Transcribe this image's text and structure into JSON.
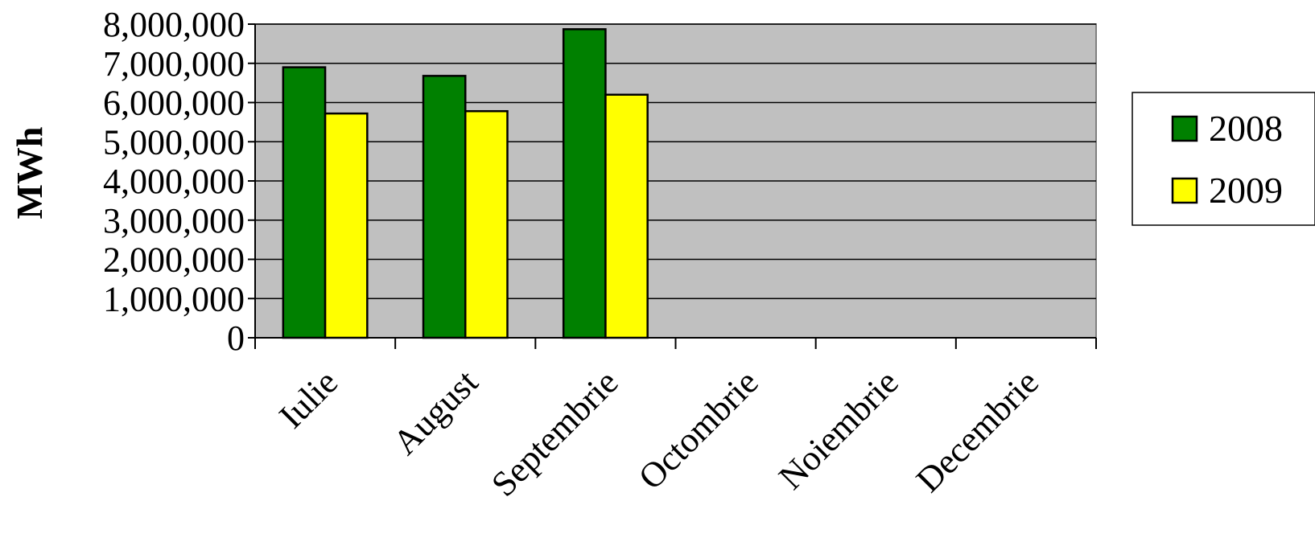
{
  "chart_data": {
    "type": "bar",
    "categories": [
      "Iulie",
      "August",
      "Septembrie",
      "Octombrie",
      "Noiembrie",
      "Decembrie"
    ],
    "series": [
      {
        "name": "2008",
        "color": "#008000",
        "values": [
          6900000,
          6680000,
          7870000,
          null,
          null,
          null
        ]
      },
      {
        "name": "2009",
        "color": "#ffff00",
        "values": [
          5720000,
          5780000,
          6200000,
          null,
          null,
          null
        ]
      }
    ],
    "xlabel": "",
    "ylabel": "MWh",
    "ylim": [
      0,
      8000000
    ],
    "yticks": [
      0,
      1000000,
      2000000,
      3000000,
      4000000,
      5000000,
      6000000,
      7000000,
      8000000
    ],
    "ytick_labels": [
      "0",
      "1,000,000",
      "2,000,000",
      "3,000,000",
      "4,000,000",
      "5,000,000",
      "6,000,000",
      "7,000,000",
      "8,000,000"
    ],
    "grid": true,
    "plot_background": "#c0c0c0",
    "legend_position": "right",
    "title": ""
  }
}
